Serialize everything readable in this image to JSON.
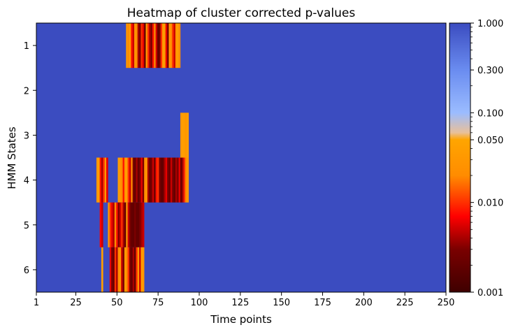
{
  "chart_data": {
    "type": "heatmap",
    "title": "Heatmap of cluster corrected p-values",
    "xlabel": "Time points",
    "ylabel": "HMM States",
    "x_ticks": [
      1,
      25,
      50,
      75,
      100,
      125,
      150,
      175,
      200,
      225,
      250
    ],
    "x_range": [
      1,
      250
    ],
    "y_categories": [
      "1",
      "2",
      "3",
      "4",
      "5",
      "6"
    ],
    "background_value": 1.0,
    "colorbar": {
      "scale": "log",
      "range": [
        0.001,
        1.0
      ],
      "tick_labels": [
        "1.000",
        "0.300",
        "0.100",
        "0.050",
        "0.010",
        "0.001"
      ],
      "tick_values": [
        1.0,
        0.3,
        0.1,
        0.05,
        0.01,
        0.001
      ],
      "colors": {
        "low": "#3f0000",
        "dark_red": "#7a0000",
        "red": "#ff0000",
        "orange": "#ff8c00",
        "light_orange": "#ffa500",
        "blend": "#e8c09a",
        "light_blue": "#9bbcff",
        "blue": "#3b4cc0"
      }
    },
    "significant_segments": [
      {
        "state": "1",
        "start": 56,
        "end": 88,
        "pattern": [
          0.03,
          0.02,
          0.04,
          0.008,
          0.005,
          0.03,
          0.02,
          0.004,
          0.003,
          0.01,
          0.006,
          0.002,
          0.03,
          0.01,
          0.004,
          0.003,
          0.008,
          0.02,
          0.005,
          0.002,
          0.003,
          0.01,
          0.04,
          0.03,
          0.006,
          0.003,
          0.04,
          0.02,
          0.01,
          0.005,
          0.03,
          0.04,
          0.02
        ]
      },
      {
        "state": "3",
        "start": 89,
        "end": 93,
        "pattern": [
          0.03,
          0.04,
          0.035,
          0.03,
          0.04
        ]
      },
      {
        "state": "4",
        "start": 38,
        "end": 44,
        "pattern": [
          0.03,
          0.04,
          0.008,
          0.004,
          0.01,
          0.03,
          0.006
        ]
      },
      {
        "state": "4",
        "start": 51,
        "end": 93,
        "pattern": [
          0.04,
          0.03,
          0.02,
          0.008,
          0.03,
          0.04,
          0.01,
          0.005,
          0.02,
          0.003,
          0.002,
          0.004,
          0.002,
          0.003,
          0.006,
          0.003,
          0.02,
          0.03,
          0.004,
          0.002,
          0.003,
          0.005,
          0.002,
          0.008,
          0.01,
          0.003,
          0.002,
          0.002,
          0.004,
          0.006,
          0.003,
          0.002,
          0.005,
          0.003,
          0.002,
          0.004,
          0.003,
          0.006,
          0.002,
          0.004,
          0.01,
          0.02,
          0.03
        ]
      },
      {
        "state": "5",
        "start": 40,
        "end": 41,
        "pattern": [
          0.007,
          0.005
        ]
      },
      {
        "state": "5",
        "start": 45,
        "end": 66,
        "pattern": [
          0.03,
          0.01,
          0.006,
          0.004,
          0.02,
          0.008,
          0.003,
          0.005,
          0.01,
          0.004,
          0.002,
          0.03,
          0.005,
          0.003,
          0.002,
          0.002,
          0.003,
          0.002,
          0.002,
          0.003,
          0.004,
          0.005
        ]
      },
      {
        "state": "6",
        "start": 41,
        "end": 41,
        "pattern": [
          0.04
        ]
      },
      {
        "state": "6",
        "start": 46,
        "end": 66,
        "pattern": [
          0.006,
          0.003,
          0.002,
          0.01,
          0.004,
          0.02,
          0.03,
          0.005,
          0.003,
          0.04,
          0.02,
          0.01,
          0.003,
          0.002,
          0.004,
          0.002,
          0.01,
          0.03,
          0.005,
          0.04,
          0.03
        ]
      }
    ]
  }
}
